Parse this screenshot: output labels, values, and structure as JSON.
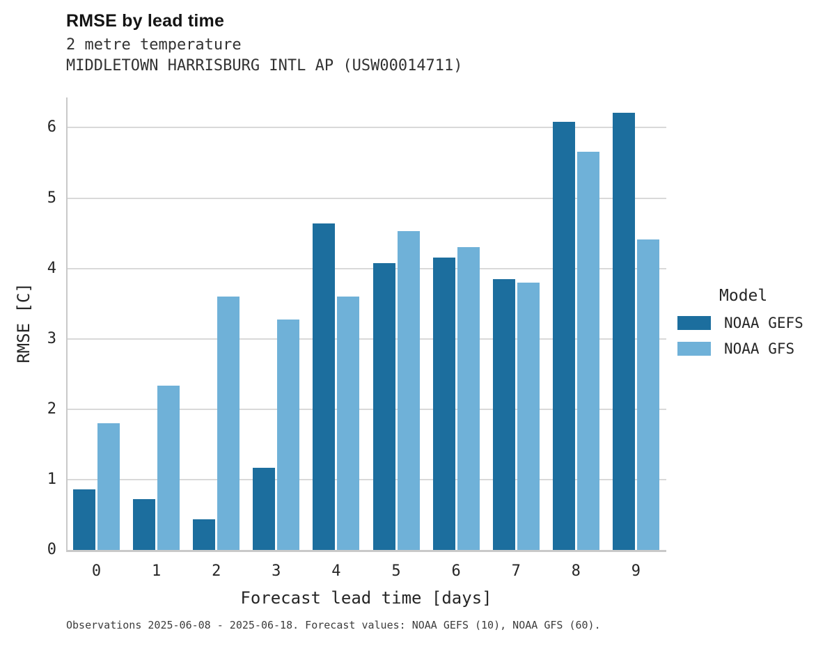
{
  "header": {
    "title": "RMSE by lead time",
    "subtitle1": "2 metre temperature",
    "subtitle2": "MIDDLETOWN HARRISBURG INTL AP (USW00014711)"
  },
  "legend": {
    "title": "Model",
    "items": [
      {
        "label": "NOAA GEFS",
        "color": "#1c6e9e"
      },
      {
        "label": "NOAA GFS",
        "color": "#6fb1d8"
      }
    ]
  },
  "footnote": "Observations 2025-06-08 - 2025-06-18. Forecast values: NOAA GEFS (10), NOAA GFS (60).",
  "chart_data": {
    "type": "bar",
    "title": "RMSE by lead time",
    "categories": [
      "0",
      "1",
      "2",
      "3",
      "4",
      "5",
      "6",
      "7",
      "8",
      "9"
    ],
    "series": [
      {
        "name": "NOAA GEFS",
        "color": "#1c6e9e",
        "values": [
          0.86,
          0.72,
          0.44,
          1.17,
          4.64,
          4.08,
          4.15,
          3.85,
          6.08,
          6.21
        ]
      },
      {
        "name": "NOAA GFS",
        "color": "#6fb1d8",
        "values": [
          1.8,
          2.33,
          3.6,
          3.27,
          3.6,
          4.53,
          4.3,
          3.8,
          5.66,
          4.41
        ]
      }
    ],
    "xlabel": "Forecast lead time [days]",
    "ylabel": "RMSE [C]",
    "ylim": [
      0,
      6.43
    ],
    "yticks": [
      0,
      1,
      2,
      3,
      4,
      5,
      6
    ],
    "grid": true,
    "legend_position": "right",
    "colors": {
      "gridline": "#d9d9d9",
      "spine": "#c9c9c9"
    }
  }
}
